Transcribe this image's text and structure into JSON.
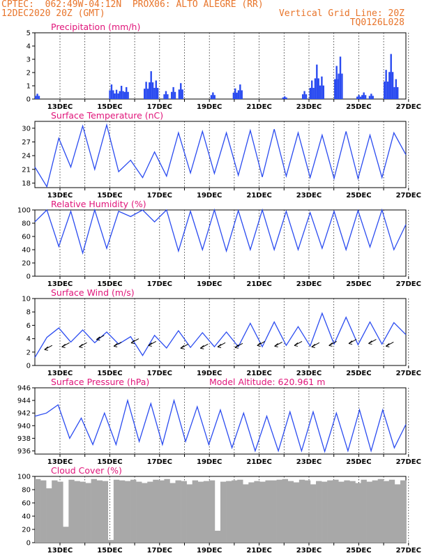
{
  "header": {
    "line1": "CPTEC:  062:49W-04:12N  PROX06: ALTO ALEGRE (RR)",
    "line2_left": "12DEC2020 20Z (GMT)",
    "line2_right": "Vertical Grid Line: 20Z",
    "line3_right": "TQ0126L028",
    "color": "#e8742a"
  },
  "colors": {
    "title": "#e0157a",
    "line": "#2a4bf0",
    "cloud": "#a8a8a8",
    "axis": "#000000"
  },
  "date_labels": [
    "13DEC",
    "15DEC",
    "17DEC",
    "19DEC",
    "21DEC",
    "23DEC",
    "25DEC",
    "27DEC"
  ],
  "panels": {
    "precip": {
      "title": "Precipitation (mm/h)",
      "yticks": [
        "0",
        "1",
        "2",
        "3",
        "4",
        "5"
      ]
    },
    "temp": {
      "title": "Surface Temperature (nC)",
      "yticks": [
        "18",
        "21",
        "24",
        "27",
        "30"
      ]
    },
    "rh": {
      "title": "Relative Humidity (%)",
      "yticks": [
        "0",
        "20",
        "40",
        "60",
        "80",
        "100"
      ]
    },
    "wind": {
      "title": "Surface Wind (m/s)",
      "yticks": [
        "0",
        "2",
        "4",
        "6",
        "8",
        "10"
      ]
    },
    "pres": {
      "title": "Surface Pressure (hPa)",
      "extra": "Model Altitude: 620.961 m",
      "yticks": [
        "936",
        "938",
        "940",
        "942",
        "944",
        "946"
      ]
    },
    "cloud": {
      "title": "Cloud Cover (%)",
      "yticks": [
        "0",
        "20",
        "40",
        "60",
        "80",
        "100"
      ]
    }
  },
  "chart_data": [
    {
      "type": "bar",
      "title": "Precipitation (mm/h)",
      "unit": "mm/h",
      "ylim": [
        0,
        5
      ],
      "x_unit": "days since 12DEC2020 20Z",
      "grid": "vertical dashed at 20Z",
      "events": [
        [
          0.1,
          0.4
        ],
        [
          3.1,
          1.1
        ],
        [
          3.3,
          0.7
        ],
        [
          3.5,
          1.0
        ],
        [
          3.7,
          0.9
        ],
        [
          4.5,
          1.3
        ],
        [
          4.7,
          2.1
        ],
        [
          4.9,
          1.4
        ],
        [
          5.3,
          0.6
        ],
        [
          5.6,
          0.9
        ],
        [
          5.9,
          1.2
        ],
        [
          7.2,
          0.5
        ],
        [
          8.1,
          0.8
        ],
        [
          8.3,
          1.1
        ],
        [
          10.1,
          0.2
        ],
        [
          10.9,
          0.6
        ],
        [
          11.2,
          1.4
        ],
        [
          11.4,
          2.6
        ],
        [
          11.6,
          1.7
        ],
        [
          12.2,
          2.5
        ],
        [
          12.35,
          3.2
        ],
        [
          13.1,
          0.3
        ],
        [
          13.3,
          0.5
        ],
        [
          13.6,
          0.4
        ],
        [
          14.2,
          2.2
        ],
        [
          14.4,
          3.4
        ],
        [
          14.6,
          1.5
        ]
      ]
    },
    {
      "type": "line",
      "title": "Surface Temperature (nC)",
      "unit": "C",
      "ylim": [
        17,
        31.5
      ],
      "values": [
        21.5,
        17.2,
        27.8,
        21.5,
        30.5,
        21.0,
        30.7,
        20.5,
        23.0,
        19.2,
        24.8,
        19.5,
        29.0,
        20.2,
        29.3,
        20.1,
        29.0,
        19.7,
        29.5,
        19.3,
        29.8,
        19.5,
        29.0,
        19.2,
        28.5,
        19.0,
        29.3,
        19.0,
        28.5,
        19.2,
        29.0,
        24.2
      ]
    },
    {
      "type": "line",
      "title": "Relative Humidity (%)",
      "unit": "%",
      "ylim": [
        0,
        100
      ],
      "values": [
        82,
        100,
        45,
        98,
        35,
        100,
        42,
        98,
        90,
        100,
        82,
        100,
        38,
        98,
        40,
        100,
        38,
        99,
        40,
        100,
        40,
        98,
        40,
        96,
        42,
        98,
        40,
        99,
        44,
        100,
        40,
        78
      ]
    },
    {
      "type": "line",
      "title": "Surface Wind (m/s)",
      "unit": "m/s",
      "ylim": [
        0,
        10
      ],
      "values": [
        1.2,
        4.2,
        5.6,
        3.5,
        5.3,
        3.4,
        5.0,
        3.2,
        4.3,
        1.5,
        4.5,
        2.6,
        5.2,
        2.7,
        4.9,
        2.8,
        5.0,
        2.8,
        6.3,
        2.8,
        6.5,
        3.0,
        5.8,
        2.9,
        7.8,
        3.2,
        7.2,
        3.1,
        6.5,
        3.2,
        6.4,
        4.6
      ],
      "arrows": [
        [
          0.7,
          3.0
        ],
        [
          1.4,
          3.4
        ],
        [
          2.1,
          3.4
        ],
        [
          2.8,
          4.5
        ],
        [
          3.5,
          3.5
        ],
        [
          4.2,
          4.0
        ],
        [
          4.9,
          3.6
        ],
        [
          6.2,
          3.2
        ],
        [
          7.0,
          3.2
        ],
        [
          7.7,
          3.4
        ],
        [
          8.4,
          3.3
        ],
        [
          9.3,
          3.6
        ],
        [
          10.0,
          3.5
        ],
        [
          10.8,
          3.6
        ],
        [
          11.5,
          3.4
        ],
        [
          12.2,
          3.6
        ],
        [
          13.0,
          3.9
        ],
        [
          13.8,
          3.9
        ],
        [
          14.5,
          3.5
        ]
      ]
    },
    {
      "type": "line",
      "title": "Surface Pressure (hPa)",
      "unit": "hPa",
      "ylim": [
        935.5,
        946
      ],
      "values": [
        941.5,
        942.0,
        943.3,
        938.0,
        941.2,
        937.0,
        942.0,
        937.0,
        944.0,
        937.5,
        943.5,
        937.0,
        944.0,
        937.5,
        943.0,
        937.0,
        942.5,
        936.5,
        942.0,
        936.0,
        941.5,
        936.0,
        942.2,
        936.0,
        942.2,
        935.9,
        942.0,
        936.0,
        942.5,
        936.0,
        942.5,
        936.5,
        940.2
      ]
    },
    {
      "type": "bar",
      "title": "Cloud Cover (%)",
      "unit": "%",
      "ylim": [
        0,
        100
      ],
      "values": [
        96,
        94,
        82,
        94,
        92,
        24,
        95,
        93,
        92,
        90,
        96,
        94,
        93,
        4,
        95,
        94,
        93,
        95,
        92,
        90,
        92,
        95,
        94,
        96,
        90,
        94,
        93,
        88,
        94,
        92,
        93,
        94,
        18,
        92,
        93,
        94,
        95,
        88,
        91,
        93,
        92,
        94,
        94,
        95,
        96,
        93,
        91,
        95,
        94,
        88,
        93,
        92,
        94,
        95,
        92,
        94,
        93,
        90,
        95,
        92,
        94,
        96,
        93,
        95,
        88,
        94
      ]
    }
  ]
}
